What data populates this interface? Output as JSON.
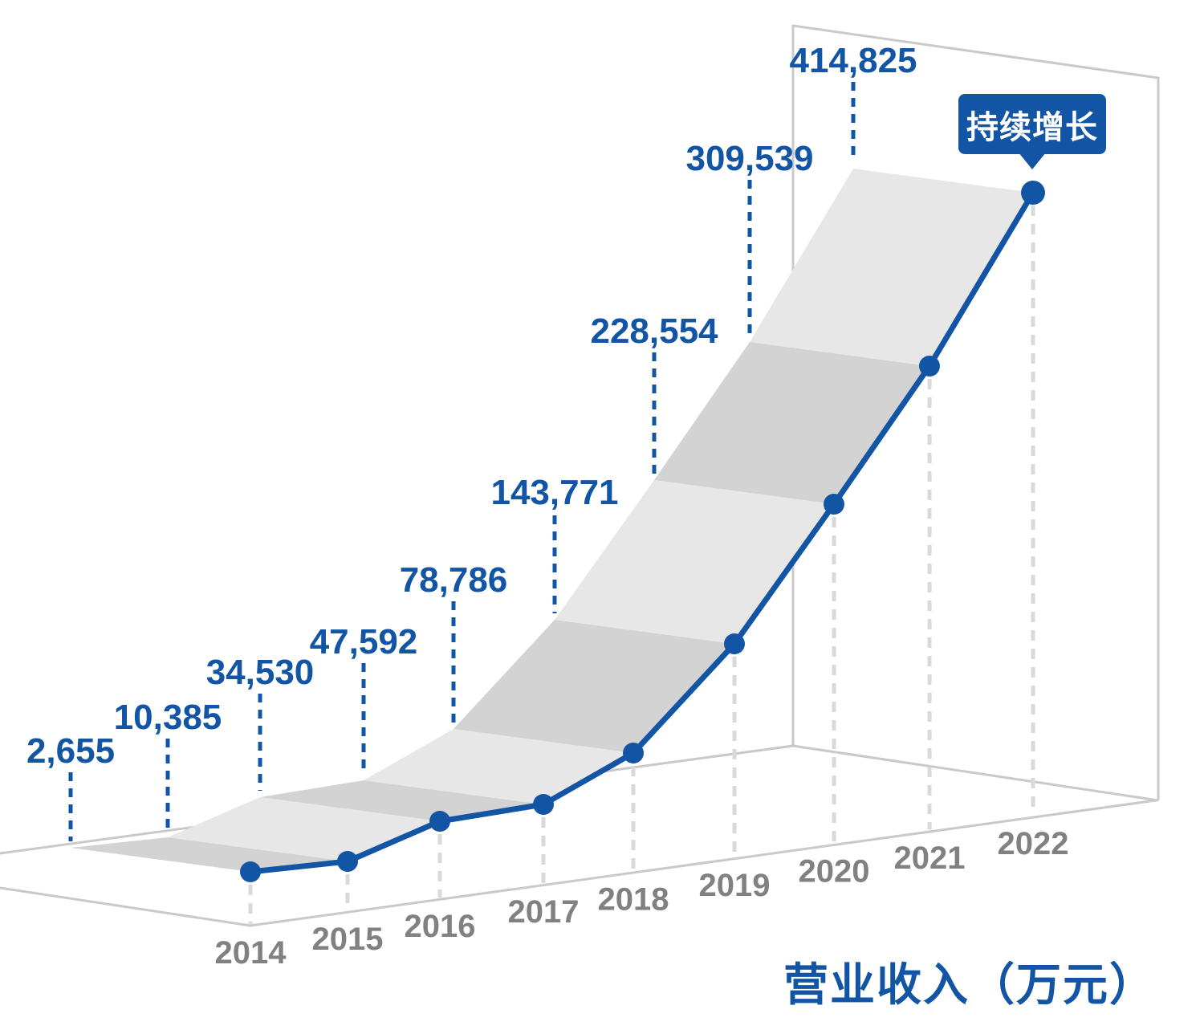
{
  "chart_data": {
    "type": "area",
    "title": "营业收入（万元）",
    "annotation": "持续增长",
    "categories": [
      "2014",
      "2015",
      "2016",
      "2017",
      "2018",
      "2019",
      "2020",
      "2021",
      "2022"
    ],
    "series": [
      {
        "name": "营业收入",
        "values": [
          2655,
          10385,
          34530,
          47592,
          78786,
          143771,
          228554,
          309539,
          414825
        ]
      }
    ],
    "value_labels": [
      "2,655",
      "10,385",
      "34,530",
      "47,592",
      "78,786",
      "143,771",
      "228,554",
      "309,539",
      "414,825"
    ],
    "legend_position": "none",
    "grid": "3d-frame",
    "ylim": [
      0,
      414825
    ],
    "colors": {
      "accent": "#1355a5",
      "ribbon_light": "#e7e7e7",
      "ribbon_dark": "#d3d3d3",
      "frame": "#c9c9c9",
      "tick_dash": "#d9d9d9",
      "year_label": "#818181",
      "badge_text": "#ffffff",
      "background": "#ffffff"
    }
  }
}
